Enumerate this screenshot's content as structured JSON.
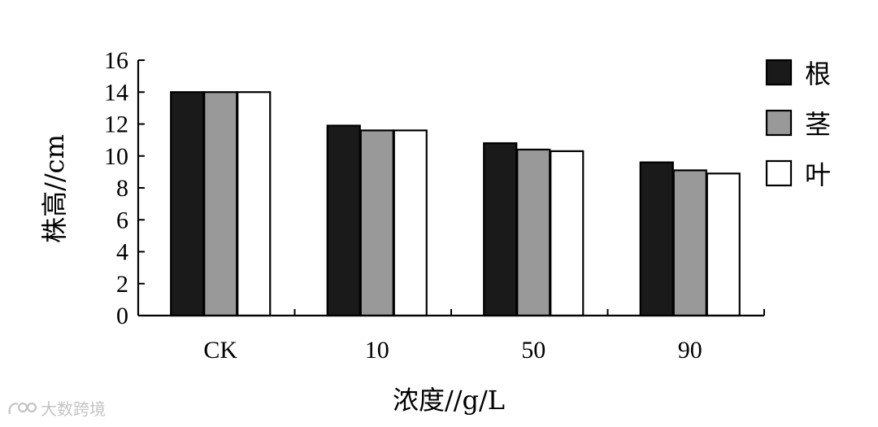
{
  "chart_data": {
    "type": "bar",
    "categories": [
      "CK",
      "10",
      "50",
      "90"
    ],
    "series": [
      {
        "name": "根",
        "values": [
          14.0,
          11.9,
          10.8,
          9.6
        ],
        "color": "#1a1a1a"
      },
      {
        "name": "茎",
        "values": [
          14.0,
          11.6,
          10.4,
          9.1
        ],
        "color": "#999999"
      },
      {
        "name": "叶",
        "values": [
          14.0,
          11.6,
          10.3,
          8.9
        ],
        "color": "#ffffff"
      }
    ],
    "title": "",
    "xlabel": "浓度//g/L",
    "ylabel": "株高//cm",
    "ylim": [
      0,
      16
    ],
    "yticks": [
      0,
      2,
      4,
      6,
      8,
      10,
      12,
      14,
      16
    ],
    "grid": false,
    "legend": "right"
  },
  "watermark": {
    "text": "大数跨境"
  }
}
